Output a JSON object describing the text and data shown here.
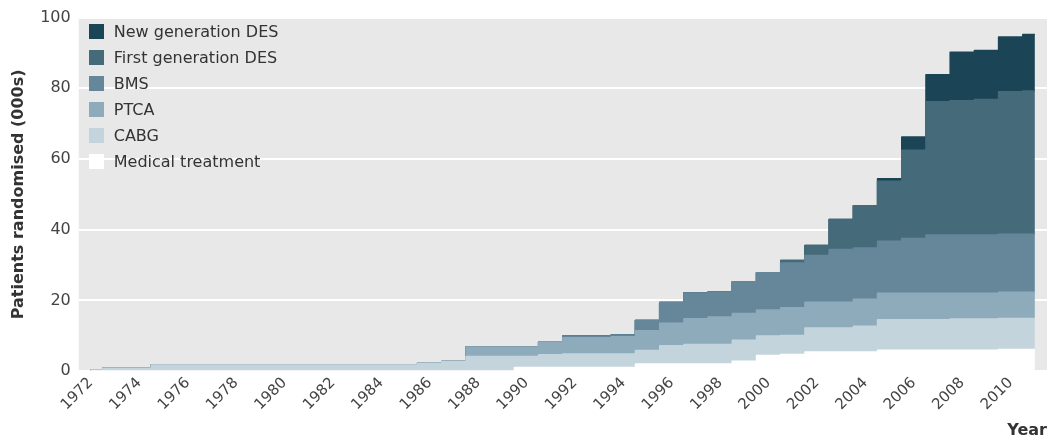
{
  "chart_data": {
    "type": "area",
    "stacked": true,
    "xlabel": "Year",
    "ylabel": "Patients randomised (000s)",
    "x": [
      1972,
      1973,
      1974,
      1975,
      1976,
      1977,
      1978,
      1979,
      1980,
      1981,
      1982,
      1983,
      1984,
      1985,
      1986,
      1987,
      1988,
      1989,
      1990,
      1991,
      1992,
      1993,
      1994,
      1995,
      1996,
      1997,
      1998,
      1999,
      2000,
      2001,
      2002,
      2003,
      2004,
      2005,
      2006,
      2007,
      2008,
      2009,
      2010,
      2011
    ],
    "xlim": [
      1971.5,
      2011.5
    ],
    "xticks": [
      1972,
      1974,
      1976,
      1978,
      1980,
      1982,
      1984,
      1986,
      1988,
      1990,
      1992,
      1994,
      1996,
      1998,
      2000,
      2002,
      2004,
      2006,
      2008,
      2010
    ],
    "ylim": [
      0,
      100
    ],
    "yticks": [
      0,
      20,
      40,
      60,
      80,
      100
    ],
    "grid": "y",
    "legend": "top left",
    "series": [
      {
        "name": "Medical treatment",
        "color": "#ffffff",
        "values": [
          0,
          0,
          0,
          0,
          0,
          0,
          0,
          0,
          0,
          0,
          0,
          0,
          0,
          0,
          0,
          0,
          0,
          0,
          1.0,
          1.0,
          1.0,
          1.0,
          1.0,
          2.0,
          2.0,
          2.0,
          2.0,
          2.8,
          4.4,
          4.7,
          5.4,
          5.4,
          5.4,
          5.9,
          5.9,
          5.9,
          5.9,
          5.9,
          6.1,
          6.1
        ]
      },
      {
        "name": "CABG",
        "color": "#c4d4dd",
        "values": [
          0.3,
          0.8,
          0.8,
          1.7,
          1.7,
          1.7,
          1.7,
          1.7,
          1.7,
          1.7,
          1.7,
          1.7,
          1.7,
          1.7,
          2.2,
          2.7,
          4.1,
          4.1,
          3.1,
          3.6,
          3.8,
          3.8,
          3.8,
          3.8,
          5.2,
          5.5,
          5.5,
          5.9,
          5.5,
          5.4,
          6.8,
          6.8,
          7.3,
          8.6,
          8.6,
          8.6,
          8.8,
          8.8,
          8.8,
          8.8
        ]
      },
      {
        "name": "PTCA",
        "color": "#8eabbb",
        "values": [
          0,
          0,
          0,
          0,
          0,
          0,
          0,
          0,
          0,
          0,
          0,
          0,
          0,
          0,
          0,
          0,
          2.7,
          2.7,
          2.7,
          3.6,
          4.6,
          4.6,
          4.9,
          5.6,
          6.3,
          7.3,
          7.8,
          7.6,
          7.4,
          7.8,
          7.3,
          7.3,
          7.6,
          7.5,
          7.5,
          7.5,
          7.3,
          7.3,
          7.4,
          7.4
        ]
      },
      {
        "name": "BMS",
        "color": "#66879a",
        "values": [
          0,
          0,
          0,
          0,
          0,
          0,
          0,
          0,
          0,
          0,
          0,
          0,
          0,
          0,
          0,
          0,
          0,
          0,
          0,
          0,
          0.5,
          0.5,
          0.5,
          2.9,
          5.9,
          7.3,
          7.1,
          9.0,
          10.5,
          12.7,
          13.2,
          14.9,
          14.5,
          14.7,
          15.5,
          16.5,
          16.5,
          16.5,
          16.4,
          16.4
        ]
      },
      {
        "name": "First generation DES",
        "color": "#456a79",
        "values": [
          0,
          0,
          0,
          0,
          0,
          0,
          0,
          0,
          0,
          0,
          0,
          0,
          0,
          0,
          0,
          0,
          0,
          0,
          0,
          0,
          0,
          0,
          0,
          0,
          0,
          0,
          0,
          0,
          0,
          0.7,
          2.8,
          8.5,
          12.0,
          17.0,
          25.0,
          37.7,
          38.0,
          38.3,
          40.3,
          40.5
        ]
      },
      {
        "name": "New generation DES",
        "color": "#1b4556",
        "values": [
          0,
          0,
          0,
          0,
          0,
          0,
          0,
          0,
          0,
          0,
          0,
          0,
          0,
          0,
          0,
          0,
          0,
          0,
          0,
          0,
          0,
          0,
          0,
          0,
          0,
          0,
          0,
          0,
          0,
          0,
          0,
          0,
          0,
          0.7,
          3.7,
          7.6,
          13.7,
          13.9,
          15.5,
          16.0
        ]
      }
    ]
  }
}
